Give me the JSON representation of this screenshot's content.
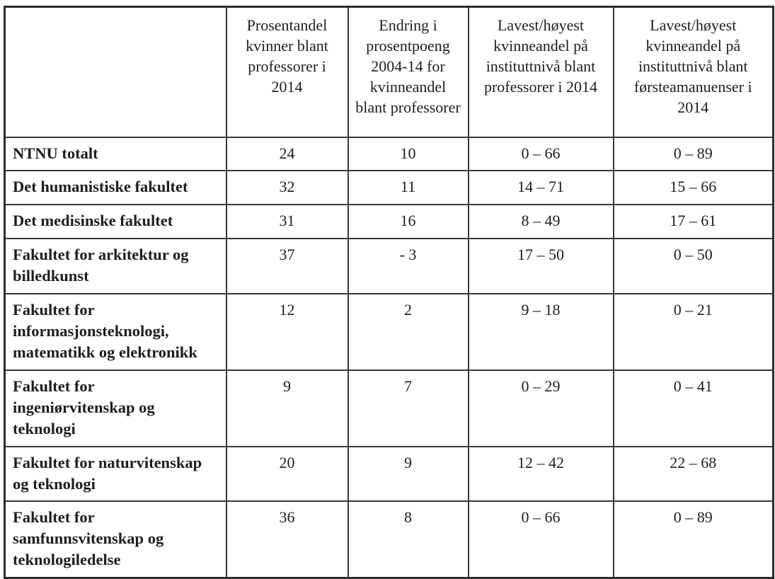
{
  "table": {
    "columns": [
      "",
      "Prosentandel kvinner blant professorer i 2014",
      "Endring i prosentpoeng 2004-14 for kvinneandel blant professorer",
      "Lavest/høyest kvinneandel på instituttnivå blant professorer i 2014",
      "Lavest/høyest kvinneandel på instituttnivå blant førsteamanuenser i 2014"
    ],
    "rows": [
      {
        "label": "NTNU totalt",
        "values": [
          "24",
          "10",
          "0 – 66",
          "0 – 89"
        ]
      },
      {
        "label": "Det humanistiske fakultet",
        "values": [
          "32",
          "11",
          "14 – 71",
          "15 – 66"
        ]
      },
      {
        "label": "Det medisinske fakultet",
        "values": [
          "31",
          "16",
          "8 – 49",
          "17 – 61"
        ]
      },
      {
        "label": "Fakultet for arkitektur og billedkunst",
        "values": [
          "37",
          "- 3",
          "17 – 50",
          "0 – 50"
        ]
      },
      {
        "label": "Fakultet for informasjonsteknologi, matematikk og elektronikk",
        "values": [
          "12",
          "2",
          "9 – 18",
          "0 – 21"
        ]
      },
      {
        "label": "Fakultet for ingeniørvitenskap og teknologi",
        "values": [
          "9",
          "7",
          "0 – 29",
          "0 – 41"
        ]
      },
      {
        "label": "Fakultet for naturvitenskap og teknologi",
        "values": [
          "20",
          "9",
          "12 – 42",
          "22 – 68"
        ]
      },
      {
        "label": "Fakultet for samfunnsvitenskap og teknologiledelse",
        "values": [
          "36",
          "8",
          "0 – 66",
          "0 – 89"
        ]
      }
    ]
  }
}
